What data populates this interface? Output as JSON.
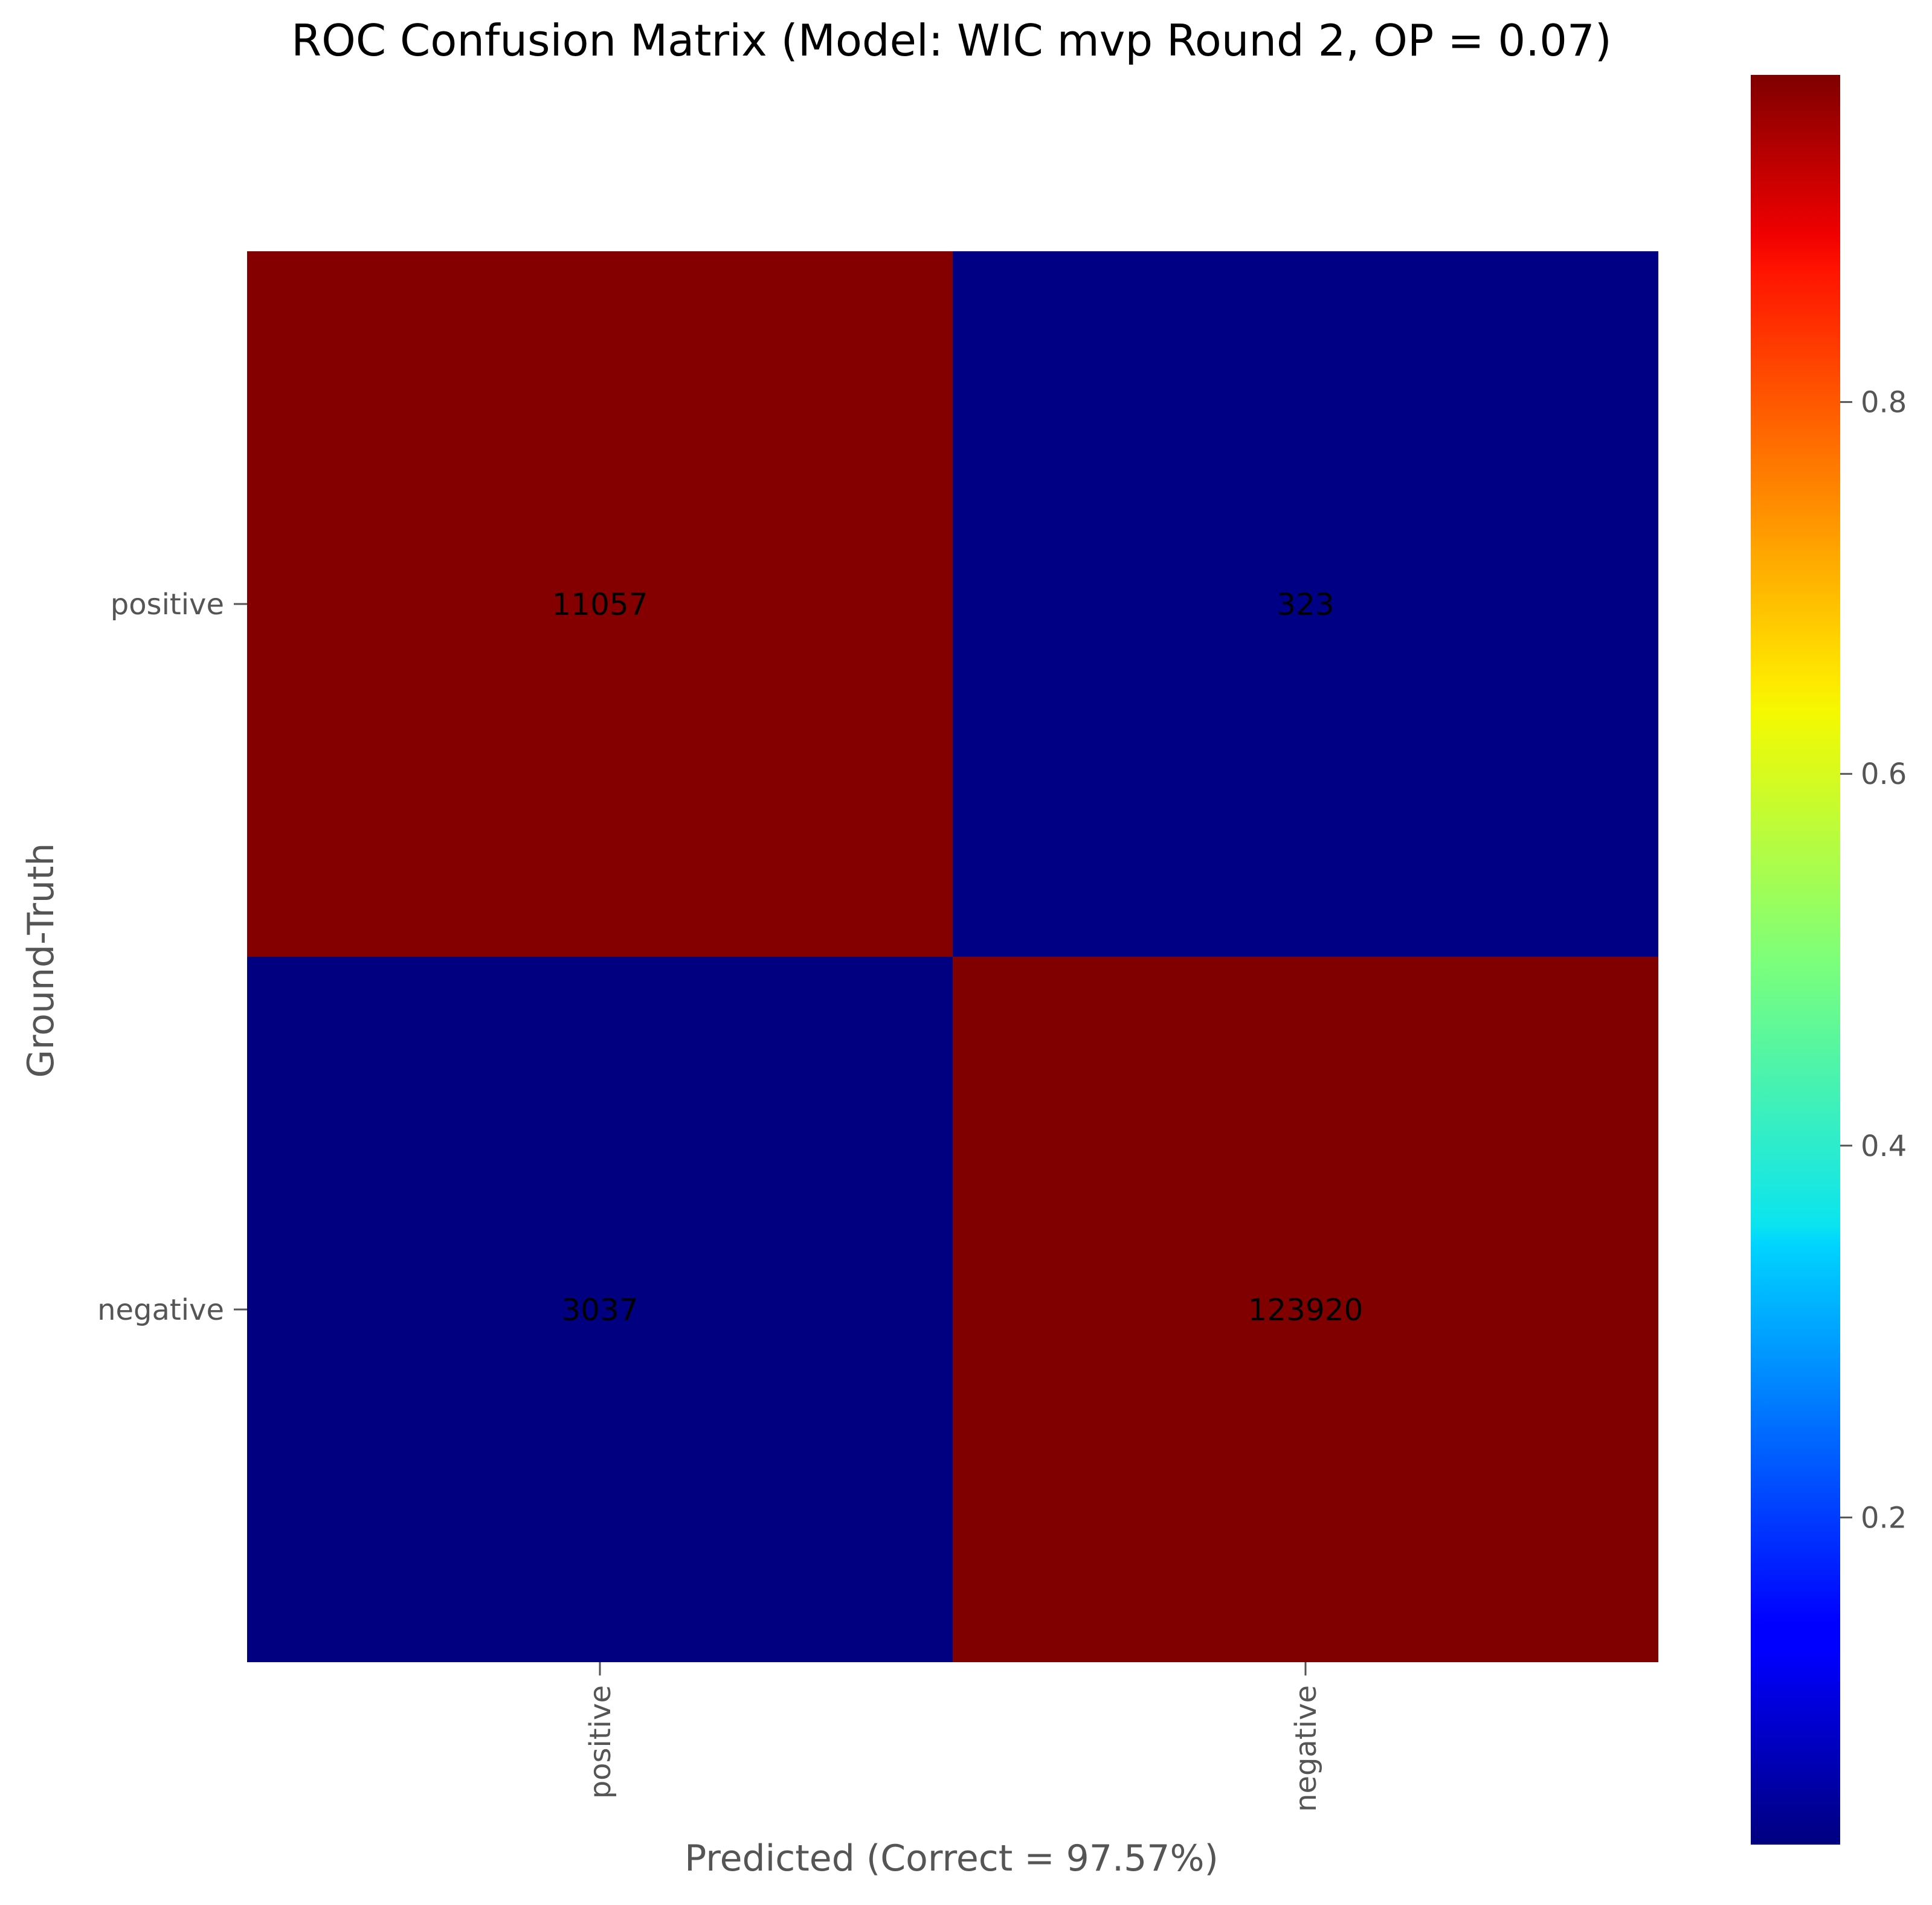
{
  "chart_data": {
    "type": "heatmap",
    "title": "ROC Confusion Matrix (Model: WIC mvp Round 2, OP = 0.07)",
    "xlabel": "Predicted (Correct = 97.57%)",
    "ylabel": "Ground-Truth",
    "x_categories": [
      "positive",
      "negative"
    ],
    "y_categories": [
      "positive",
      "negative"
    ],
    "counts": [
      [
        11057,
        323
      ],
      [
        3037,
        123920
      ]
    ],
    "normalized": [
      [
        0.9716,
        0.0284
      ],
      [
        0.024,
        0.976
      ]
    ],
    "colormap": "jet",
    "colorbar": {
      "range": [
        0.024,
        0.976
      ],
      "ticks": [
        0.2,
        0.4,
        0.6,
        0.8
      ],
      "tick_labels": [
        "0.2",
        "0.4",
        "0.6",
        "0.8"
      ]
    },
    "grid": false
  }
}
